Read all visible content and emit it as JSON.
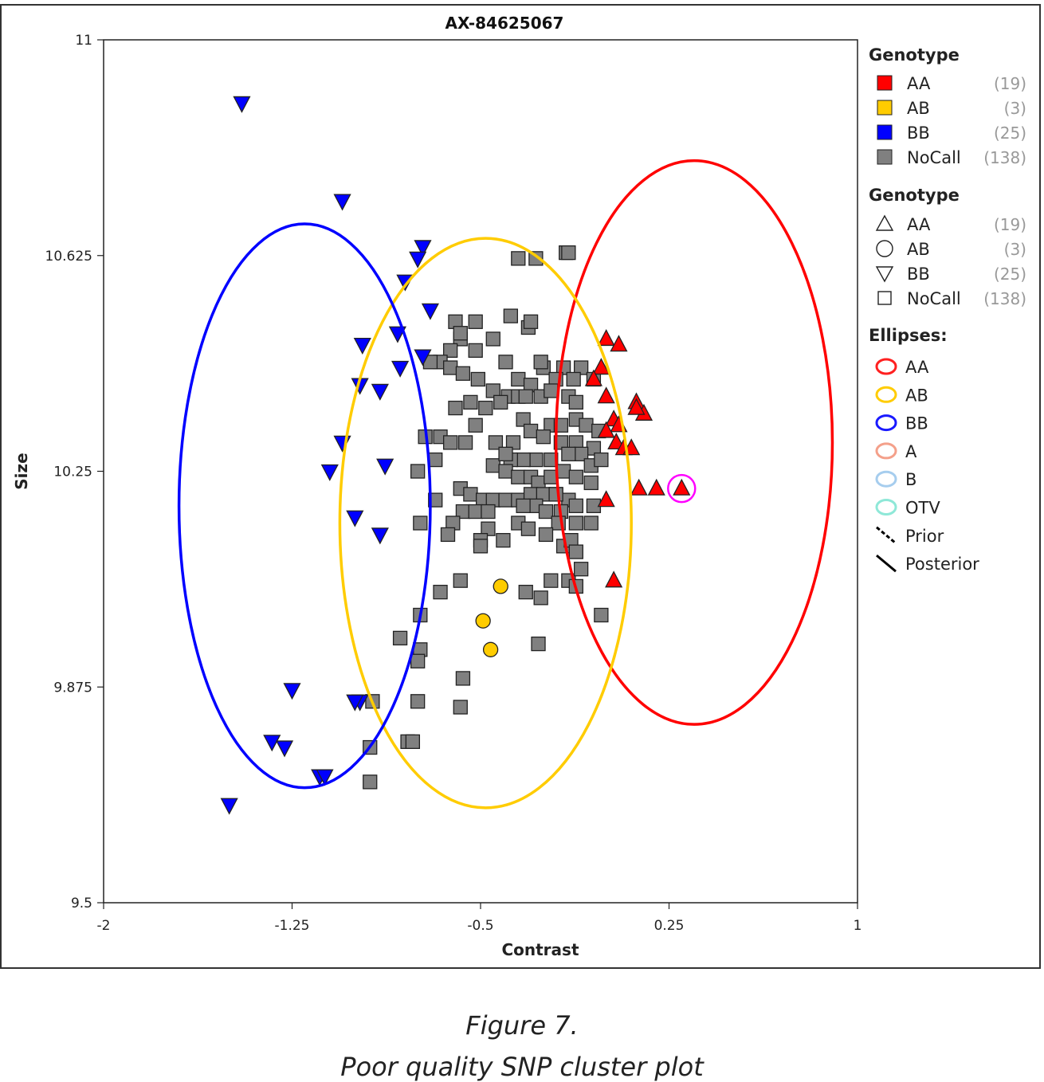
{
  "chart_data": {
    "type": "scatter",
    "title": "AX-84625067",
    "xlabel": "Contrast",
    "ylabel": "Size",
    "xlim": [
      -2,
      1
    ],
    "ylim": [
      9.5,
      11
    ],
    "xticks": [
      -2,
      -1.25,
      -0.5,
      0.25,
      1
    ],
    "xtick_labels": [
      "-2",
      "-1.25",
      "-0.5",
      "0.25",
      "1"
    ],
    "yticks": [
      9.5,
      9.875,
      10.25,
      10.625,
      11
    ],
    "ytick_labels": [
      "9.5",
      "9.875",
      "10.25",
      "10.625",
      "11"
    ],
    "colors": {
      "AA": "#ff0000",
      "AB": "#ffcc00",
      "BB": "#0000ff",
      "NoCall": "#808080",
      "highlight": "#ff00ff"
    },
    "ellipses": [
      {
        "name": "AA",
        "color": "#ff0000",
        "cx": 0.35,
        "cy": 10.3,
        "rx": 0.55,
        "ry": 0.49
      },
      {
        "name": "AB",
        "color": "#ffcc00",
        "cx": -0.48,
        "cy": 10.16,
        "rx": 0.58,
        "ry": 0.495
      },
      {
        "name": "BB",
        "color": "#0000ff",
        "cx": -1.2,
        "cy": 10.19,
        "rx": 0.5,
        "ry": 0.49
      }
    ],
    "highlight_point": {
      "x": 0.3,
      "y": 10.22
    },
    "series": [
      {
        "name": "AA",
        "marker": "triangle-up",
        "points": [
          [
            0.0,
            10.48
          ],
          [
            0.05,
            10.47
          ],
          [
            -0.02,
            10.43
          ],
          [
            -0.05,
            10.41
          ],
          [
            0.0,
            10.38
          ],
          [
            0.12,
            10.37
          ],
          [
            0.15,
            10.35
          ],
          [
            0.03,
            10.34
          ],
          [
            0.05,
            10.33
          ],
          [
            0.0,
            10.32
          ],
          [
            0.04,
            10.3
          ],
          [
            0.07,
            10.29
          ],
          [
            0.1,
            10.29
          ],
          [
            0.13,
            10.22
          ],
          [
            0.2,
            10.22
          ],
          [
            0.3,
            10.22
          ],
          [
            0.0,
            10.2
          ],
          [
            0.03,
            10.06
          ],
          [
            0.12,
            10.36
          ]
        ]
      },
      {
        "name": "AB",
        "marker": "circle",
        "points": [
          [
            -0.42,
            10.05
          ],
          [
            -0.49,
            9.99
          ],
          [
            -0.46,
            9.94
          ]
        ]
      },
      {
        "name": "BB",
        "marker": "triangle-down",
        "points": [
          [
            -1.45,
            10.89
          ],
          [
            -1.05,
            10.72
          ],
          [
            -0.73,
            10.64
          ],
          [
            -0.75,
            10.62
          ],
          [
            -0.8,
            10.58
          ],
          [
            -0.7,
            10.53
          ],
          [
            -0.83,
            10.49
          ],
          [
            -0.97,
            10.47
          ],
          [
            -0.73,
            10.45
          ],
          [
            -0.82,
            10.43
          ],
          [
            -0.98,
            10.4
          ],
          [
            -0.9,
            10.39
          ],
          [
            -1.05,
            10.3
          ],
          [
            -0.88,
            10.26
          ],
          [
            -1.1,
            10.25
          ],
          [
            -1.0,
            10.17
          ],
          [
            -0.9,
            10.14
          ],
          [
            -1.25,
            9.87
          ],
          [
            -0.98,
            9.85
          ],
          [
            -1.33,
            9.78
          ],
          [
            -1.28,
            9.77
          ],
          [
            -1.14,
            9.72
          ],
          [
            -1.12,
            9.72
          ],
          [
            -1.5,
            9.67
          ],
          [
            -1.0,
            9.85
          ]
        ]
      },
      {
        "name": "NoCall",
        "marker": "square",
        "points": [
          [
            -0.35,
            10.62
          ],
          [
            -0.28,
            10.62
          ],
          [
            -0.16,
            10.63
          ],
          [
            -0.6,
            10.51
          ],
          [
            -0.52,
            10.51
          ],
          [
            -0.38,
            10.52
          ],
          [
            -0.31,
            10.5
          ],
          [
            -0.58,
            10.48
          ],
          [
            -0.45,
            10.48
          ],
          [
            -0.62,
            10.46
          ],
          [
            -0.52,
            10.46
          ],
          [
            -0.66,
            10.44
          ],
          [
            -0.62,
            10.43
          ],
          [
            -0.7,
            10.44
          ],
          [
            -0.4,
            10.44
          ],
          [
            -0.25,
            10.43
          ],
          [
            -0.17,
            10.43
          ],
          [
            -0.1,
            10.43
          ],
          [
            -0.2,
            10.41
          ],
          [
            -0.13,
            10.41
          ],
          [
            -0.05,
            10.41
          ],
          [
            -0.57,
            10.42
          ],
          [
            -0.51,
            10.41
          ],
          [
            -0.35,
            10.41
          ],
          [
            -0.3,
            10.4
          ],
          [
            -0.45,
            10.39
          ],
          [
            -0.39,
            10.38
          ],
          [
            -0.42,
            10.37
          ],
          [
            -0.35,
            10.38
          ],
          [
            -0.32,
            10.38
          ],
          [
            -0.26,
            10.38
          ],
          [
            -0.22,
            10.39
          ],
          [
            -0.15,
            10.38
          ],
          [
            -0.12,
            10.37
          ],
          [
            -0.48,
            10.36
          ],
          [
            -0.54,
            10.37
          ],
          [
            -0.6,
            10.36
          ],
          [
            -0.52,
            10.33
          ],
          [
            -0.33,
            10.34
          ],
          [
            -0.3,
            10.32
          ],
          [
            -0.22,
            10.33
          ],
          [
            -0.18,
            10.33
          ],
          [
            -0.12,
            10.34
          ],
          [
            -0.08,
            10.33
          ],
          [
            -0.03,
            10.32
          ],
          [
            -0.72,
            10.31
          ],
          [
            -0.66,
            10.31
          ],
          [
            -0.62,
            10.3
          ],
          [
            -0.56,
            10.3
          ],
          [
            -0.44,
            10.3
          ],
          [
            -0.37,
            10.3
          ],
          [
            -0.25,
            10.31
          ],
          [
            -0.18,
            10.3
          ],
          [
            -0.12,
            10.3
          ],
          [
            -0.05,
            10.29
          ],
          [
            -0.1,
            10.28
          ],
          [
            -0.15,
            10.28
          ],
          [
            -0.22,
            10.27
          ],
          [
            -0.28,
            10.27
          ],
          [
            -0.33,
            10.27
          ],
          [
            -0.38,
            10.27
          ],
          [
            -0.45,
            10.26
          ],
          [
            -0.68,
            10.27
          ],
          [
            -0.75,
            10.25
          ],
          [
            -0.4,
            10.25
          ],
          [
            -0.35,
            10.24
          ],
          [
            -0.3,
            10.24
          ],
          [
            -0.27,
            10.23
          ],
          [
            -0.22,
            10.24
          ],
          [
            -0.17,
            10.25
          ],
          [
            -0.12,
            10.24
          ],
          [
            -0.06,
            10.26
          ],
          [
            -0.02,
            10.27
          ],
          [
            -0.06,
            10.23
          ],
          [
            -0.58,
            10.22
          ],
          [
            -0.54,
            10.21
          ],
          [
            -0.49,
            10.2
          ],
          [
            -0.45,
            10.2
          ],
          [
            -0.4,
            10.2
          ],
          [
            -0.35,
            10.2
          ],
          [
            -0.3,
            10.21
          ],
          [
            -0.25,
            10.21
          ],
          [
            -0.2,
            10.21
          ],
          [
            -0.15,
            10.2
          ],
          [
            -0.28,
            10.19
          ],
          [
            -0.33,
            10.19
          ],
          [
            -0.24,
            10.18
          ],
          [
            -0.18,
            10.18
          ],
          [
            -0.12,
            10.19
          ],
          [
            -0.05,
            10.19
          ],
          [
            -0.57,
            10.18
          ],
          [
            -0.52,
            10.18
          ],
          [
            -0.47,
            10.18
          ],
          [
            -0.74,
            10.16
          ],
          [
            -0.61,
            10.16
          ],
          [
            -0.47,
            10.15
          ],
          [
            -0.35,
            10.16
          ],
          [
            -0.31,
            10.15
          ],
          [
            -0.19,
            10.16
          ],
          [
            -0.06,
            10.16
          ],
          [
            -0.63,
            10.14
          ],
          [
            -0.5,
            10.13
          ],
          [
            -0.41,
            10.13
          ],
          [
            -0.24,
            10.14
          ],
          [
            -0.17,
            10.12
          ],
          [
            -0.14,
            10.13
          ],
          [
            -0.5,
            10.12
          ],
          [
            -0.12,
            10.11
          ],
          [
            -0.58,
            10.06
          ],
          [
            -0.22,
            10.06
          ],
          [
            -0.15,
            10.06
          ],
          [
            -0.12,
            10.05
          ],
          [
            -0.66,
            10.04
          ],
          [
            -0.32,
            10.04
          ],
          [
            -0.26,
            10.03
          ],
          [
            -0.74,
            10.0
          ],
          [
            -0.82,
            9.96
          ],
          [
            -0.74,
            9.94
          ],
          [
            -0.75,
            9.92
          ],
          [
            -0.57,
            9.89
          ],
          [
            -0.93,
            9.85
          ],
          [
            -0.75,
            9.85
          ],
          [
            -0.58,
            9.84
          ],
          [
            -0.79,
            9.78
          ],
          [
            -0.77,
            9.78
          ],
          [
            -0.94,
            9.77
          ],
          [
            -0.94,
            9.71
          ],
          [
            -0.15,
            10.63
          ],
          [
            -0.3,
            10.51
          ],
          [
            -0.58,
            10.49
          ],
          [
            -0.26,
            10.44
          ],
          [
            -0.4,
            10.28
          ],
          [
            -0.12,
            10.16
          ],
          [
            -0.2,
            10.21
          ],
          [
            -0.68,
            10.2
          ],
          [
            -0.1,
            10.08
          ],
          [
            -0.02,
            10.0
          ],
          [
            -0.27,
            9.95
          ]
        ]
      }
    ],
    "legend": {
      "position": "right",
      "fill_title": "Genotype",
      "fill_items": [
        {
          "label": "AA",
          "count": "(19)",
          "color": "#ff0000"
        },
        {
          "label": "AB",
          "count": "(3)",
          "color": "#ffcc00"
        },
        {
          "label": "BB",
          "count": "(25)",
          "color": "#0000ff"
        },
        {
          "label": "NoCall",
          "count": "(138)",
          "color": "#808080"
        }
      ],
      "shape_title": "Genotype",
      "shape_items": [
        {
          "label": "AA",
          "count": "(19)",
          "shape": "triangle-up"
        },
        {
          "label": "AB",
          "count": "(3)",
          "shape": "circle"
        },
        {
          "label": "BB",
          "count": "(25)",
          "shape": "triangle-down"
        },
        {
          "label": "NoCall",
          "count": "(138)",
          "shape": "square"
        }
      ],
      "ellipse_title": "Ellipses:",
      "ellipse_items": [
        {
          "label": "AA",
          "color": "#ff2020",
          "kind": "ellipse"
        },
        {
          "label": "AB",
          "color": "#ffcc00",
          "kind": "ellipse"
        },
        {
          "label": "BB",
          "color": "#1a1aff",
          "kind": "ellipse"
        },
        {
          "label": "A",
          "color": "#f4a08a",
          "kind": "ellipse"
        },
        {
          "label": "B",
          "color": "#a6cdee",
          "kind": "ellipse"
        },
        {
          "label": "OTV",
          "color": "#8fe8d8",
          "kind": "ellipse"
        },
        {
          "label": "Prior",
          "color": "#000000",
          "kind": "dashed-line"
        },
        {
          "label": "Posterior",
          "color": "#000000",
          "kind": "solid-line"
        }
      ]
    }
  },
  "caption": {
    "figure_label": "Figure 7.",
    "description": "Poor quality SNP cluster plot"
  }
}
